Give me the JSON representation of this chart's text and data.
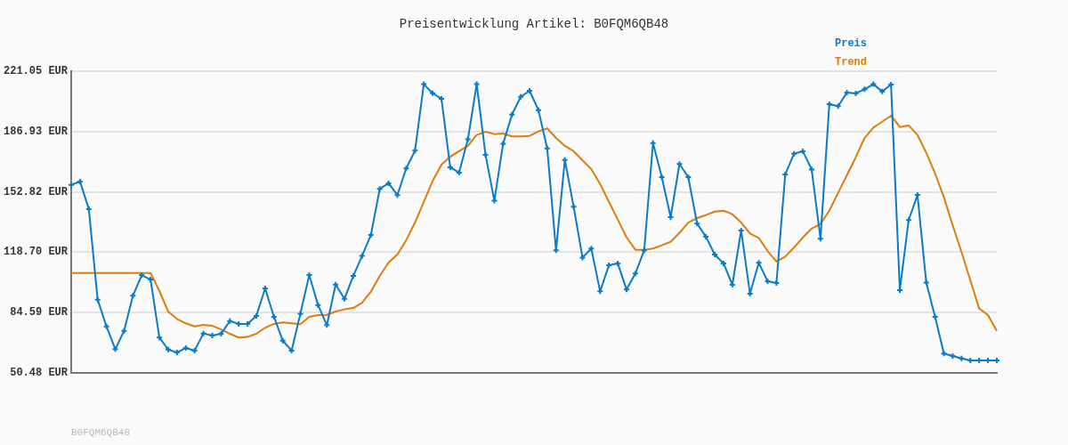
{
  "chart_data": {
    "type": "line",
    "title": "Preisentwicklung Artikel: B0FQM6QB48",
    "categories": [
      null,
      null,
      null,
      null,
      null,
      null,
      null,
      null,
      null,
      null,
      null,
      null,
      null,
      null,
      null,
      null,
      null,
      null,
      null,
      null,
      null,
      null,
      null,
      null,
      null,
      null,
      null,
      null,
      null,
      null,
      null,
      null,
      null,
      null,
      null,
      null,
      null,
      null,
      null,
      null,
      null,
      null,
      null,
      null,
      null,
      null,
      null,
      null,
      null,
      null,
      null,
      null,
      null,
      null,
      null,
      null,
      null,
      null,
      null,
      null,
      null,
      null,
      null,
      null,
      null,
      null,
      null,
      null,
      null,
      null,
      null,
      null,
      null,
      null,
      null,
      null,
      null,
      null,
      null,
      null,
      null,
      null,
      null,
      null,
      null,
      null,
      null,
      null,
      null,
      null,
      null,
      null,
      null,
      null,
      null,
      null,
      null,
      null,
      null,
      null,
      null,
      null,
      null,
      null,
      null,
      null
    ],
    "series": [
      {
        "name": "Preis",
        "color": "#0a7bc8",
        "marker": "cross",
        "values": [
          156.8,
          158.7,
          143.1,
          91.9,
          76.8,
          63.9,
          74.3,
          94.1,
          105.8,
          103.3,
          70.5,
          63.7,
          62.0,
          64.6,
          63.1,
          72.8,
          71.6,
          72.6,
          79.8,
          78.2,
          78.2,
          82.7,
          98.3,
          82.2,
          68.7,
          63.1,
          84.0,
          105.8,
          88.9,
          77.5,
          100.4,
          92.4,
          105.3,
          116.7,
          128.5,
          154.5,
          157.7,
          151.0,
          166.1,
          176.1,
          213.7,
          208.6,
          205.5,
          166.7,
          163.7,
          182.5,
          213.7,
          173.8,
          147.9,
          180.1,
          196.5,
          206.6,
          210.0,
          199.1,
          177.4,
          119.8,
          170.9,
          144.4,
          115.7,
          120.8,
          96.6,
          111.4,
          112.4,
          97.6,
          106.7,
          119.8,
          180.4,
          161.2,
          138.5,
          168.6,
          161.2,
          134.9,
          127.5,
          117.4,
          112.4,
          100.3,
          131.0,
          95.3,
          112.7,
          102.3,
          101.3,
          162.7,
          174.4,
          175.8,
          165.4,
          126.3,
          202.4,
          201.3,
          209.0,
          208.5,
          210.8,
          213.7,
          209.6,
          213.5,
          97.3,
          136.9,
          151.1,
          101.5,
          82.2,
          61.4,
          60.0,
          58.7,
          57.5,
          57.5,
          57.5,
          57.5
        ]
      },
      {
        "name": "Trend",
        "color": "#e07b0d",
        "marker": "none",
        "values": [
          107.0,
          107.0,
          107.0,
          107.0,
          107.0,
          107.0,
          107.0,
          107.0,
          107.0,
          107.0,
          96.9,
          85.2,
          81.0,
          78.5,
          76.8,
          77.6,
          77.1,
          75.1,
          72.6,
          70.5,
          70.8,
          72.6,
          76.0,
          78.2,
          79.0,
          78.5,
          78.0,
          82.2,
          83.2,
          83.3,
          85.2,
          86.4,
          87.2,
          90.2,
          96.4,
          105.3,
          112.9,
          117.4,
          125.5,
          135.5,
          147.2,
          159.0,
          168.2,
          172.7,
          175.8,
          178.8,
          185.0,
          186.8,
          185.5,
          185.8,
          184.2,
          184.2,
          184.5,
          187.0,
          188.7,
          183.3,
          178.8,
          175.8,
          170.7,
          165.7,
          157.3,
          147.2,
          137.2,
          127.1,
          120.1,
          120.1,
          120.8,
          122.6,
          124.6,
          129.6,
          135.5,
          138.0,
          139.7,
          141.7,
          142.2,
          140.2,
          135.5,
          129.3,
          126.8,
          119.4,
          113.4,
          116.2,
          121.4,
          127.1,
          132.1,
          134.7,
          142.2,
          152.3,
          162.3,
          172.4,
          183.3,
          189.2,
          192.5,
          195.9,
          189.5,
          190.4,
          185.0,
          174.9,
          163.2,
          149.8,
          133.9,
          118.8,
          102.8,
          86.9,
          83.2,
          74.3
        ]
      }
    ],
    "ylim": [
      50.48,
      221.05
    ],
    "yticks": [
      {
        "value": 50.48,
        "label": "50.48 EUR"
      },
      {
        "value": 84.59,
        "label": "84.59 EUR"
      },
      {
        "value": 118.7,
        "label": "118.70 EUR"
      },
      {
        "value": 152.82,
        "label": "152.82 EUR"
      },
      {
        "value": 186.93,
        "label": "186.93 EUR"
      },
      {
        "value": 221.05,
        "label": "221.05 EUR"
      }
    ],
    "tick_labels": "y",
    "grid": "y",
    "legend": "top right",
    "line_style": "solid",
    "annotations": [
      "B0FQM6QB48"
    ]
  }
}
